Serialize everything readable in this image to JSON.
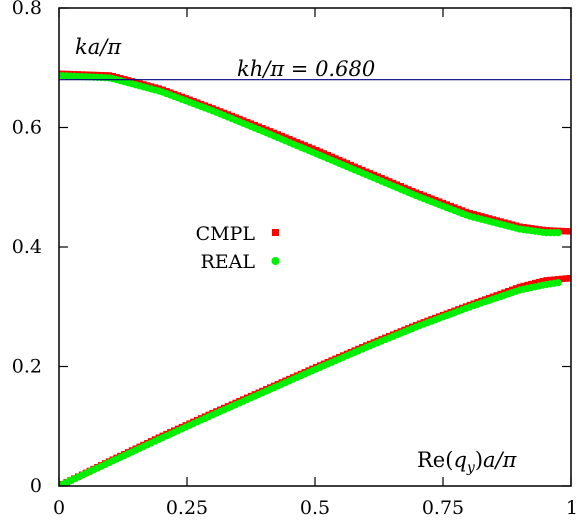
{
  "chart_data": {
    "type": "scatter",
    "title": "",
    "xlabel": "Re(q_y)a/π",
    "ylabel": "ka/π",
    "xlim": [
      0,
      1
    ],
    "ylim": [
      0,
      0.8
    ],
    "x_ticks": [
      0,
      0.25,
      0.5,
      0.75,
      1
    ],
    "x_tick_labels": [
      "0",
      "0.25",
      "0.5",
      "0.75",
      "1"
    ],
    "y_ticks": [
      0,
      0.2,
      0.4,
      0.6,
      0.8
    ],
    "y_tick_labels": [
      "0",
      "0.2",
      "0.4",
      "0.6",
      "0.8"
    ],
    "grid": false,
    "legend": {
      "position": "center-left",
      "entries": [
        "CMPL",
        "REAL"
      ]
    },
    "reference_line": {
      "y": 0.68,
      "label": "kh/π = 0.680",
      "color": "#000080"
    },
    "series": [
      {
        "name": "CMPL",
        "color": "#ff0000",
        "marker": "square",
        "branches": [
          {
            "x": [
              0.0,
              0.1,
              0.2,
              0.3,
              0.4,
              0.5,
              0.6,
              0.7,
              0.8,
              0.9,
              0.95,
              1.0
            ],
            "y": [
              0.0,
              0.042,
              0.083,
              0.122,
              0.16,
              0.198,
              0.235,
              0.27,
              0.302,
              0.333,
              0.344,
              0.348
            ]
          },
          {
            "x": [
              0.0,
              0.1,
              0.2,
              0.3,
              0.4,
              0.5,
              0.6,
              0.7,
              0.8,
              0.9,
              0.95,
              1.0
            ],
            "y": [
              0.69,
              0.687,
              0.664,
              0.632,
              0.598,
              0.563,
              0.526,
              0.49,
              0.457,
              0.434,
              0.428,
              0.426
            ]
          }
        ]
      },
      {
        "name": "REAL",
        "color": "#00ee00",
        "marker": "circle",
        "branches": [
          {
            "x": [
              0.0,
              0.1,
              0.2,
              0.3,
              0.4,
              0.5,
              0.6,
              0.7,
              0.8,
              0.9,
              0.95,
              0.98
            ],
            "y": [
              0.0,
              0.04,
              0.08,
              0.119,
              0.157,
              0.195,
              0.232,
              0.267,
              0.299,
              0.328,
              0.337,
              0.341
            ]
          },
          {
            "x": [
              0.0,
              0.1,
              0.2,
              0.3,
              0.4,
              0.5,
              0.6,
              0.7,
              0.8,
              0.9,
              0.95,
              0.98
            ],
            "y": [
              0.687,
              0.683,
              0.66,
              0.628,
              0.593,
              0.557,
              0.521,
              0.485,
              0.452,
              0.43,
              0.424,
              0.424
            ]
          }
        ]
      }
    ]
  }
}
